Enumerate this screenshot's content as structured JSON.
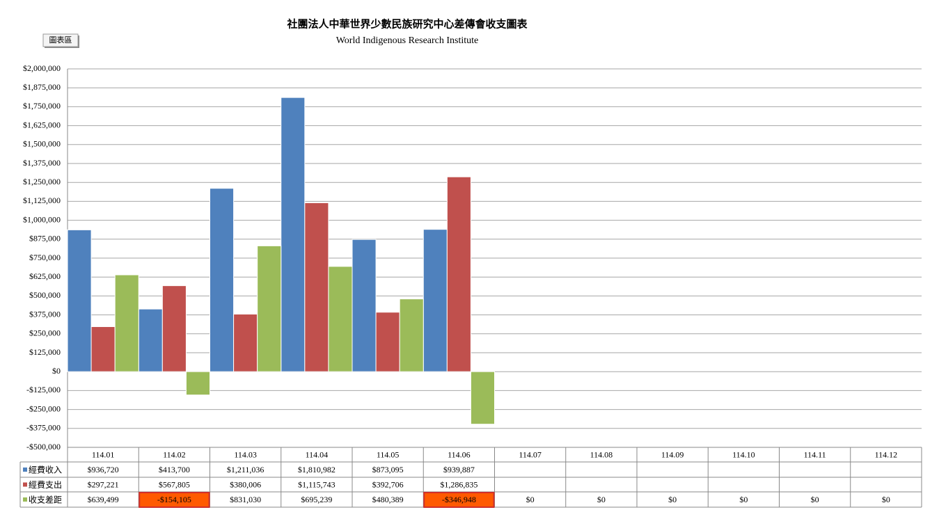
{
  "chart_data": {
    "type": "bar",
    "title": "社團法人中華世界少數民族研究中心差傳會收支圖表",
    "subtitle": "World Indigenous Research Institute",
    "button": "圖表區",
    "categories": [
      "114.01",
      "114.02",
      "114.03",
      "114.04",
      "114.05",
      "114.06",
      "114.07",
      "114.08",
      "114.09",
      "114.10",
      "114.11",
      "114.12"
    ],
    "series": [
      {
        "name": "經費收入",
        "color": "#4f81bd",
        "values": [
          936720,
          413700,
          1211036,
          1810982,
          873095,
          939887,
          null,
          null,
          null,
          null,
          null,
          null
        ],
        "value_labels": [
          "$936,720",
          "$413,700",
          "$1,211,036",
          "$1,810,982",
          "$873,095",
          "$939,887",
          null,
          null,
          null,
          null,
          null,
          null
        ]
      },
      {
        "name": "經費支出",
        "color": "#c0504d",
        "values": [
          297221,
          567805,
          380006,
          1115743,
          392706,
          1286835,
          null,
          null,
          null,
          null,
          null,
          null
        ],
        "value_labels": [
          "$297,221",
          "$567,805",
          "$380,006",
          "$1,115,743",
          "$392,706",
          "$1,286,835",
          null,
          null,
          null,
          null,
          null,
          null
        ]
      },
      {
        "name": "收支差距",
        "color": "#9bbb59",
        "values": [
          639499,
          -154105,
          831030,
          695239,
          480389,
          -346948,
          0,
          0,
          0,
          0,
          0,
          0
        ],
        "value_labels": [
          "$639,499",
          "-$154,105",
          "$831,030",
          "$695,239",
          "$480,389",
          "-$346,948",
          "$0",
          "$0",
          "$0",
          "$0",
          "$0",
          "$0"
        ]
      }
    ],
    "ylim": [
      -500000,
      2000000
    ],
    "yticks": [
      {
        "value": -500000,
        "label": "-$500,000"
      },
      {
        "value": -375000,
        "label": "-$375,000"
      },
      {
        "value": -250000,
        "label": "-$250,000"
      },
      {
        "value": -125000,
        "label": "-$125,000"
      },
      {
        "value": 0,
        "label": "$0"
      },
      {
        "value": 125000,
        "label": "$125,000"
      },
      {
        "value": 250000,
        "label": "$250,000"
      },
      {
        "value": 375000,
        "label": "$375,000"
      },
      {
        "value": 500000,
        "label": "$500,000"
      },
      {
        "value": 625000,
        "label": "$625,000"
      },
      {
        "value": 750000,
        "label": "$750,000"
      },
      {
        "value": 875000,
        "label": "$875,000"
      },
      {
        "value": 1000000,
        "label": "$1,000,000"
      },
      {
        "value": 1125000,
        "label": "$1,125,000"
      },
      {
        "value": 1250000,
        "label": "$1,250,000"
      },
      {
        "value": 1375000,
        "label": "$1,375,000"
      },
      {
        "value": 1500000,
        "label": "$1,500,000"
      },
      {
        "value": 1625000,
        "label": "$1,625,000"
      },
      {
        "value": 1750000,
        "label": "$1,750,000"
      },
      {
        "value": 1875000,
        "label": "$1,875,000"
      },
      {
        "value": 2000000,
        "label": "$2,000,000"
      }
    ],
    "grid": true,
    "highlight_color": "#ff5a00"
  }
}
